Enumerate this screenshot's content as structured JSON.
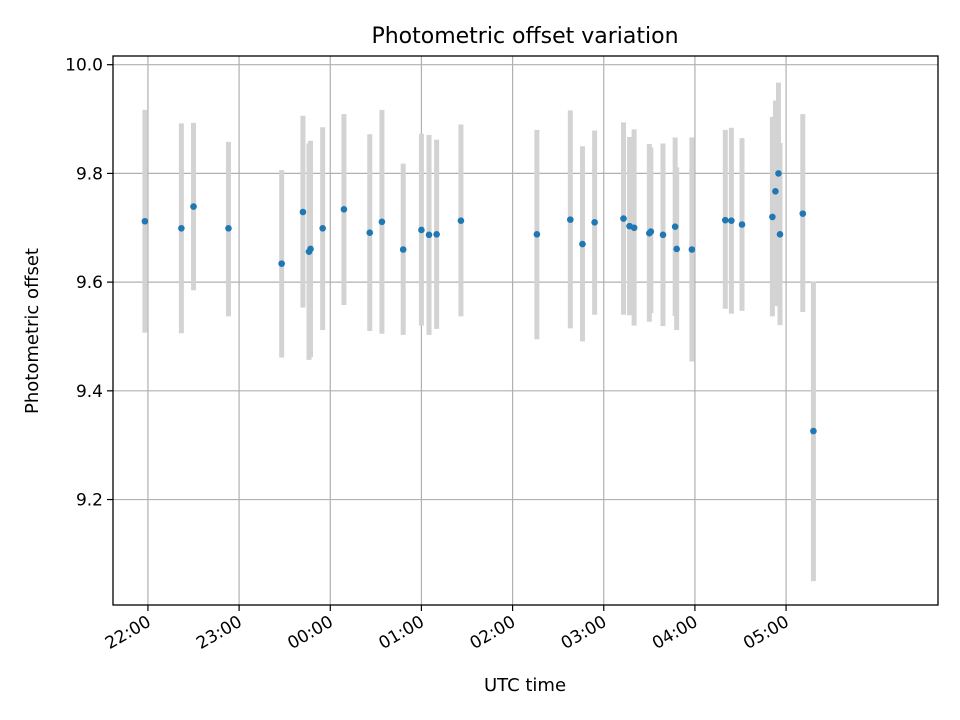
{
  "chart_data": {
    "type": "scatter",
    "title": "Photometric offset variation",
    "xlabel": "UTC time",
    "ylabel": "Photometric offset",
    "xlim": [
      "21:37",
      "06:40"
    ],
    "ylim": [
      9.006,
      10.016
    ],
    "grid": true,
    "x_ticks": [
      "22:00",
      "23:00",
      "00:00",
      "01:00",
      "02:00",
      "03:00",
      "04:00",
      "05:00"
    ],
    "y_ticks": [
      "9.2",
      "9.4",
      "9.6",
      "9.8",
      "10.0"
    ],
    "marker_color": "#1f77b4",
    "errorbar_color": "#d3d3d3",
    "series": [
      {
        "points": [
          {
            "x": "21:58",
            "y": 9.712,
            "low": 9.507,
            "high": 9.917
          },
          {
            "x": "22:22",
            "y": 9.699,
            "low": 9.506,
            "high": 9.892
          },
          {
            "x": "22:30",
            "y": 9.739,
            "low": 9.585,
            "high": 9.893
          },
          {
            "x": "22:53",
            "y": 9.699,
            "low": 9.537,
            "high": 9.858
          },
          {
            "x": "23:28",
            "y": 9.634,
            "low": 9.461,
            "high": 9.806
          },
          {
            "x": "23:42",
            "y": 9.729,
            "low": 9.553,
            "high": 9.906
          },
          {
            "x": "23:46",
            "y": 9.656,
            "low": 9.457,
            "high": 9.855
          },
          {
            "x": "23:47",
            "y": 9.661,
            "low": 9.462,
            "high": 9.86
          },
          {
            "x": "23:55",
            "y": 9.699,
            "low": 9.512,
            "high": 9.885
          },
          {
            "x": "00:09",
            "y": 9.734,
            "low": 9.558,
            "high": 9.909
          },
          {
            "x": "00:26",
            "y": 9.691,
            "low": 9.51,
            "high": 9.872
          },
          {
            "x": "00:34",
            "y": 9.711,
            "low": 9.505,
            "high": 9.917
          },
          {
            "x": "00:48",
            "y": 9.66,
            "low": 9.503,
            "high": 9.818
          },
          {
            "x": "01:00",
            "y": 9.696,
            "low": 9.52,
            "high": 9.873
          },
          {
            "x": "01:05",
            "y": 9.687,
            "low": 9.503,
            "high": 9.871
          },
          {
            "x": "01:10",
            "y": 9.688,
            "low": 9.514,
            "high": 9.862
          },
          {
            "x": "01:26",
            "y": 9.713,
            "low": 9.537,
            "high": 9.89
          },
          {
            "x": "02:16",
            "y": 9.688,
            "low": 9.495,
            "high": 9.88
          },
          {
            "x": "02:38",
            "y": 9.715,
            "low": 9.515,
            "high": 9.916
          },
          {
            "x": "02:46",
            "y": 9.67,
            "low": 9.491,
            "high": 9.85
          },
          {
            "x": "02:54",
            "y": 9.71,
            "low": 9.54,
            "high": 9.879
          },
          {
            "x": "03:13",
            "y": 9.717,
            "low": 9.54,
            "high": 9.894
          },
          {
            "x": "03:17",
            "y": 9.703,
            "low": 9.539,
            "high": 9.867
          },
          {
            "x": "03:20",
            "y": 9.7,
            "low": 9.52,
            "high": 9.881
          },
          {
            "x": "03:30",
            "y": 9.69,
            "low": 9.527,
            "high": 9.854
          },
          {
            "x": "03:31",
            "y": 9.693,
            "low": 9.543,
            "high": 9.848
          },
          {
            "x": "03:39",
            "y": 9.687,
            "low": 9.519,
            "high": 9.855
          },
          {
            "x": "03:47",
            "y": 9.702,
            "low": 9.538,
            "high": 9.866
          },
          {
            "x": "03:48",
            "y": 9.661,
            "low": 9.512,
            "high": 9.811
          },
          {
            "x": "03:58",
            "y": 9.66,
            "low": 9.454,
            "high": 9.866
          },
          {
            "x": "04:20",
            "y": 9.714,
            "low": 9.551,
            "high": 9.88
          },
          {
            "x": "04:24",
            "y": 9.713,
            "low": 9.542,
            "high": 9.884
          },
          {
            "x": "04:31",
            "y": 9.706,
            "low": 9.547,
            "high": 9.865
          },
          {
            "x": "04:51",
            "y": 9.72,
            "low": 9.537,
            "high": 9.904
          },
          {
            "x": "04:53",
            "y": 9.767,
            "low": 9.556,
            "high": 9.934
          },
          {
            "x": "04:55",
            "y": 9.8,
            "low": 9.631,
            "high": 9.967
          },
          {
            "x": "04:56",
            "y": 9.688,
            "low": 9.521,
            "high": 9.856
          },
          {
            "x": "05:11",
            "y": 9.726,
            "low": 9.545,
            "high": 9.909
          },
          {
            "x": "05:18",
            "y": 9.326,
            "low": 9.05,
            "high": 9.601
          }
        ]
      }
    ]
  }
}
